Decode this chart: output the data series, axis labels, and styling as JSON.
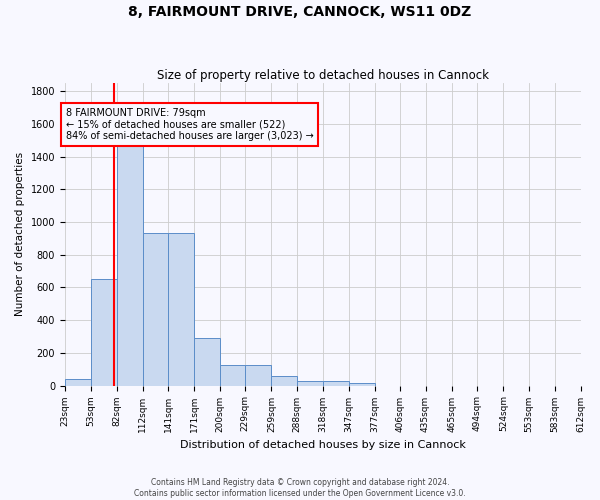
{
  "title1": "8, FAIRMOUNT DRIVE, CANNOCK, WS11 0DZ",
  "title2": "Size of property relative to detached houses in Cannock",
  "xlabel": "Distribution of detached houses by size in Cannock",
  "ylabel": "Number of detached properties",
  "bins": [
    "23sqm",
    "53sqm",
    "82sqm",
    "112sqm",
    "141sqm",
    "171sqm",
    "200sqm",
    "229sqm",
    "259sqm",
    "288sqm",
    "318sqm",
    "347sqm",
    "377sqm",
    "406sqm",
    "435sqm",
    "465sqm",
    "494sqm",
    "524sqm",
    "553sqm",
    "583sqm",
    "612sqm"
  ],
  "bin_edges": [
    23,
    53,
    82,
    112,
    141,
    171,
    200,
    229,
    259,
    288,
    318,
    347,
    377,
    406,
    435,
    465,
    494,
    524,
    553,
    583,
    612
  ],
  "values": [
    40,
    650,
    1470,
    935,
    935,
    290,
    125,
    125,
    60,
    25,
    25,
    15,
    0,
    0,
    0,
    0,
    0,
    0,
    0,
    0
  ],
  "bar_color": "#c9d9f0",
  "bar_edge_color": "#5b8dc9",
  "grid_color": "#cccccc",
  "vline_x": 79,
  "vline_color": "red",
  "annotation_line1": "8 FAIRMOUNT DRIVE: 79sqm",
  "annotation_line2": "← 15% of detached houses are smaller (522)",
  "annotation_line3": "84% of semi-detached houses are larger (3,023) →",
  "annotation_box_color": "red",
  "ylim": [
    0,
    1850
  ],
  "yticks": [
    0,
    200,
    400,
    600,
    800,
    1000,
    1200,
    1400,
    1600,
    1800
  ],
  "footer1": "Contains HM Land Registry data © Crown copyright and database right 2024.",
  "footer2": "Contains public sector information licensed under the Open Government Licence v3.0.",
  "bg_color": "#f8f8ff",
  "figwidth": 6.0,
  "figheight": 5.0,
  "dpi": 100
}
